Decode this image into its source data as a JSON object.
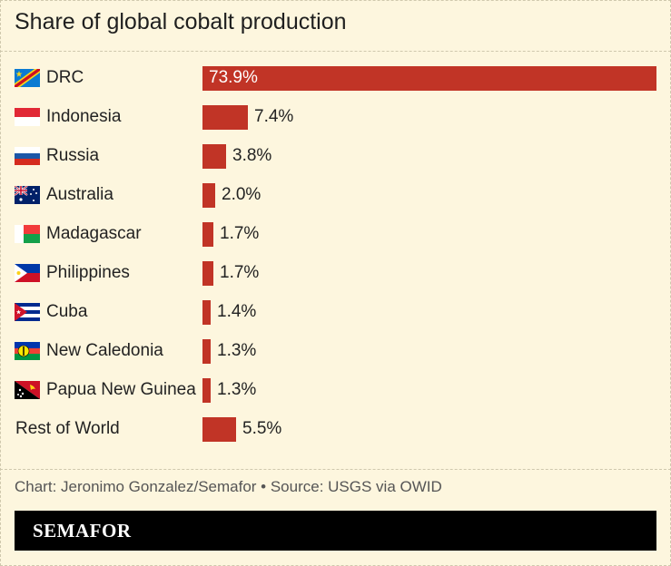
{
  "title": "Share of global cobalt production",
  "credit": "Chart: Jeronimo Gonzalez/Semafor • Source: USGS via OWID",
  "brand": "SEMAFOR",
  "colors": {
    "bar": "#c13426",
    "background": "#fdf6de"
  },
  "chart_data": {
    "type": "bar",
    "orientation": "horizontal",
    "categories": [
      "DRC",
      "Indonesia",
      "Russia",
      "Australia",
      "Madagascar",
      "Philippines",
      "Cuba",
      "New Caledonia",
      "Papua New Guinea",
      "Rest of World"
    ],
    "values": [
      73.9,
      7.4,
      3.8,
      2.0,
      1.7,
      1.7,
      1.4,
      1.3,
      1.3,
      5.5
    ],
    "value_labels": [
      "73.9%",
      "7.4%",
      "3.8%",
      "2.0%",
      "1.7%",
      "1.7%",
      "1.4%",
      "1.3%",
      "1.3%",
      "5.5%"
    ],
    "flags": [
      "drc-flag",
      "indonesia-flag",
      "russia-flag",
      "australia-flag",
      "madagascar-flag",
      "philippines-flag",
      "cuba-flag",
      "new-caledonia-flag",
      "papua-new-guinea-flag",
      ""
    ],
    "title": "Share of global cobalt production",
    "xlim": [
      0,
      73.9
    ]
  }
}
